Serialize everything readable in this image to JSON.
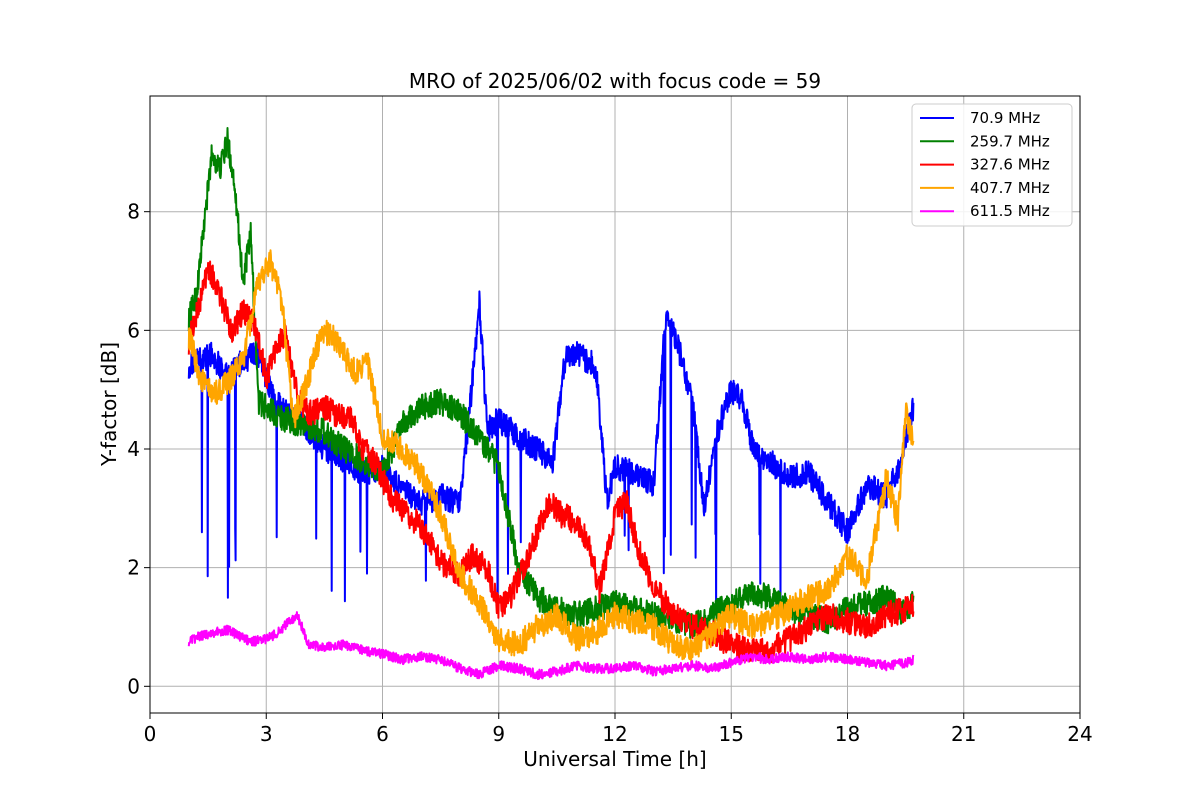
{
  "chart_data": {
    "type": "line",
    "title": "MRO of 2025/06/02 with focus code = 59",
    "xlabel": "Universal Time [h]",
    "ylabel": "Y-factor [dB]",
    "xlim": [
      0,
      24
    ],
    "ylim": [
      -0.45,
      9.95
    ],
    "xticks": [
      0,
      3,
      6,
      9,
      12,
      15,
      18,
      21,
      24
    ],
    "xtick_labels": [
      "0",
      "3",
      "6",
      "9",
      "12",
      "15",
      "18",
      "21",
      "24"
    ],
    "yticks": [
      0,
      2,
      4,
      6,
      8
    ],
    "ytick_labels": [
      "0",
      "2",
      "4",
      "6",
      "8"
    ],
    "grid": true,
    "legend_position": "top-right",
    "series": [
      {
        "name": " 70.9 MHz",
        "color": "#0000ff",
        "x": [
          1.0,
          1.3,
          1.6,
          2.0,
          2.4,
          2.8,
          3.2,
          3.6,
          4.0,
          4.5,
          5.0,
          5.5,
          6.0,
          6.5,
          7.0,
          7.5,
          8.0,
          8.3,
          8.5,
          8.7,
          9.0,
          9.5,
          10.0,
          10.4,
          10.7,
          11.0,
          11.5,
          11.8,
          12.0,
          12.5,
          13.0,
          13.3,
          13.6,
          14.0,
          14.3,
          14.6,
          15.0,
          15.3,
          15.6,
          16.0,
          16.5,
          17.0,
          17.5,
          18.0,
          18.5,
          19.0,
          19.4,
          19.7
        ],
        "y": [
          5.4,
          5.5,
          5.6,
          5.2,
          5.5,
          5.6,
          4.8,
          4.6,
          4.4,
          4.0,
          3.8,
          3.6,
          3.7,
          3.3,
          3.1,
          3.2,
          3.1,
          5.0,
          6.5,
          4.3,
          4.5,
          4.2,
          4.0,
          3.8,
          5.5,
          5.6,
          5.4,
          3.1,
          3.7,
          3.6,
          3.4,
          6.2,
          5.8,
          4.8,
          3.0,
          4.2,
          5.0,
          4.8,
          3.9,
          3.8,
          3.5,
          3.6,
          3.1,
          2.6,
          3.4,
          3.2,
          3.8,
          4.7
        ]
      },
      {
        "name": "259.7 MHz",
        "color": "#008000",
        "x": [
          1.0,
          1.2,
          1.4,
          1.6,
          1.8,
          2.0,
          2.2,
          2.4,
          2.6,
          2.8,
          3.0,
          3.5,
          4.0,
          4.5,
          5.0,
          5.5,
          6.0,
          6.5,
          7.0,
          7.5,
          8.0,
          8.5,
          9.0,
          9.3,
          9.5,
          10.0,
          10.5,
          11.0,
          11.5,
          12.0,
          12.5,
          13.0,
          13.5,
          14.0,
          14.5,
          15.0,
          15.5,
          16.0,
          16.5,
          17.0,
          17.5,
          18.0,
          18.5,
          19.0,
          19.5,
          19.7
        ],
        "y": [
          6.2,
          6.6,
          7.8,
          9.0,
          8.7,
          9.2,
          8.4,
          6.8,
          7.6,
          4.8,
          4.7,
          4.5,
          4.4,
          4.3,
          4.0,
          3.8,
          3.6,
          4.4,
          4.7,
          4.8,
          4.6,
          4.2,
          3.7,
          2.7,
          2.0,
          1.5,
          1.3,
          1.2,
          1.3,
          1.4,
          1.3,
          1.2,
          1.1,
          1.0,
          1.2,
          1.4,
          1.6,
          1.5,
          1.3,
          1.2,
          1.1,
          1.3,
          1.4,
          1.5,
          1.2,
          1.4
        ]
      },
      {
        "name": "327.6 MHz",
        "color": "#ff0000",
        "x": [
          1.0,
          1.3,
          1.5,
          1.8,
          2.1,
          2.4,
          2.7,
          3.0,
          3.3,
          3.5,
          3.8,
          4.1,
          4.5,
          4.8,
          5.2,
          5.5,
          5.8,
          6.2,
          6.6,
          7.0,
          7.5,
          8.0,
          8.3,
          8.7,
          9.0,
          9.3,
          9.7,
          10.0,
          10.3,
          10.6,
          10.9,
          11.3,
          11.6,
          12.0,
          12.3,
          12.6,
          13.0,
          13.5,
          14.0,
          14.5,
          15.0,
          15.5,
          16.0,
          16.5,
          17.0,
          17.5,
          18.0,
          18.5,
          19.0,
          19.5,
          19.7
        ],
        "y": [
          5.8,
          6.5,
          7.1,
          6.6,
          6.0,
          6.3,
          6.1,
          5.2,
          5.8,
          5.9,
          4.9,
          4.6,
          4.7,
          4.6,
          4.5,
          4.0,
          3.8,
          3.2,
          2.9,
          2.7,
          2.1,
          1.9,
          2.2,
          2.0,
          1.3,
          1.5,
          2.1,
          2.6,
          3.1,
          2.9,
          2.8,
          2.5,
          1.6,
          2.9,
          3.1,
          2.3,
          1.7,
          1.2,
          1.0,
          0.9,
          0.7,
          0.6,
          0.6,
          0.8,
          1.0,
          1.2,
          1.1,
          1.0,
          1.2,
          1.3,
          1.4
        ]
      },
      {
        "name": "407.7 MHz",
        "color": "#ffa500",
        "x": [
          1.0,
          1.3,
          1.6,
          2.0,
          2.4,
          2.8,
          3.1,
          3.4,
          3.7,
          4.0,
          4.3,
          4.6,
          5.0,
          5.3,
          5.6,
          6.0,
          6.5,
          7.0,
          7.5,
          8.0,
          8.5,
          9.0,
          9.5,
          10.0,
          10.5,
          11.0,
          11.5,
          12.0,
          12.5,
          13.0,
          13.5,
          14.0,
          14.5,
          15.0,
          15.5,
          16.0,
          16.5,
          17.0,
          17.5,
          18.0,
          18.5,
          19.0,
          19.3,
          19.5,
          19.7
        ],
        "y": [
          5.9,
          5.2,
          4.9,
          5.1,
          5.5,
          6.8,
          7.2,
          6.5,
          4.5,
          5.0,
          5.7,
          6.0,
          5.6,
          5.3,
          5.5,
          4.2,
          4.0,
          3.6,
          2.9,
          1.9,
          1.4,
          0.8,
          0.7,
          1.0,
          1.2,
          0.8,
          0.9,
          1.2,
          1.1,
          1.0,
          0.7,
          0.6,
          0.9,
          1.2,
          1.0,
          1.1,
          1.3,
          1.5,
          1.6,
          2.2,
          1.8,
          3.5,
          2.8,
          4.6,
          4.1
        ]
      },
      {
        "name": "611.5 MHz",
        "color": "#ff00ff",
        "x": [
          1.0,
          1.3,
          1.6,
          2.0,
          2.3,
          2.6,
          3.0,
          3.3,
          3.6,
          3.8,
          4.1,
          4.5,
          5.0,
          5.5,
          6.0,
          6.5,
          7.0,
          7.5,
          8.0,
          8.5,
          9.0,
          9.5,
          10.0,
          10.5,
          11.0,
          11.5,
          12.0,
          12.5,
          13.0,
          13.5,
          14.0,
          14.5,
          15.0,
          15.5,
          16.0,
          16.5,
          17.0,
          17.5,
          18.0,
          18.5,
          19.0,
          19.5,
          19.7
        ],
        "y": [
          0.75,
          0.85,
          0.9,
          0.95,
          0.85,
          0.75,
          0.8,
          0.9,
          1.1,
          1.2,
          0.7,
          0.65,
          0.7,
          0.6,
          0.55,
          0.45,
          0.5,
          0.45,
          0.3,
          0.2,
          0.35,
          0.3,
          0.2,
          0.25,
          0.35,
          0.3,
          0.3,
          0.35,
          0.25,
          0.3,
          0.35,
          0.3,
          0.4,
          0.5,
          0.45,
          0.5,
          0.45,
          0.5,
          0.45,
          0.4,
          0.35,
          0.4,
          0.45
        ]
      }
    ]
  }
}
